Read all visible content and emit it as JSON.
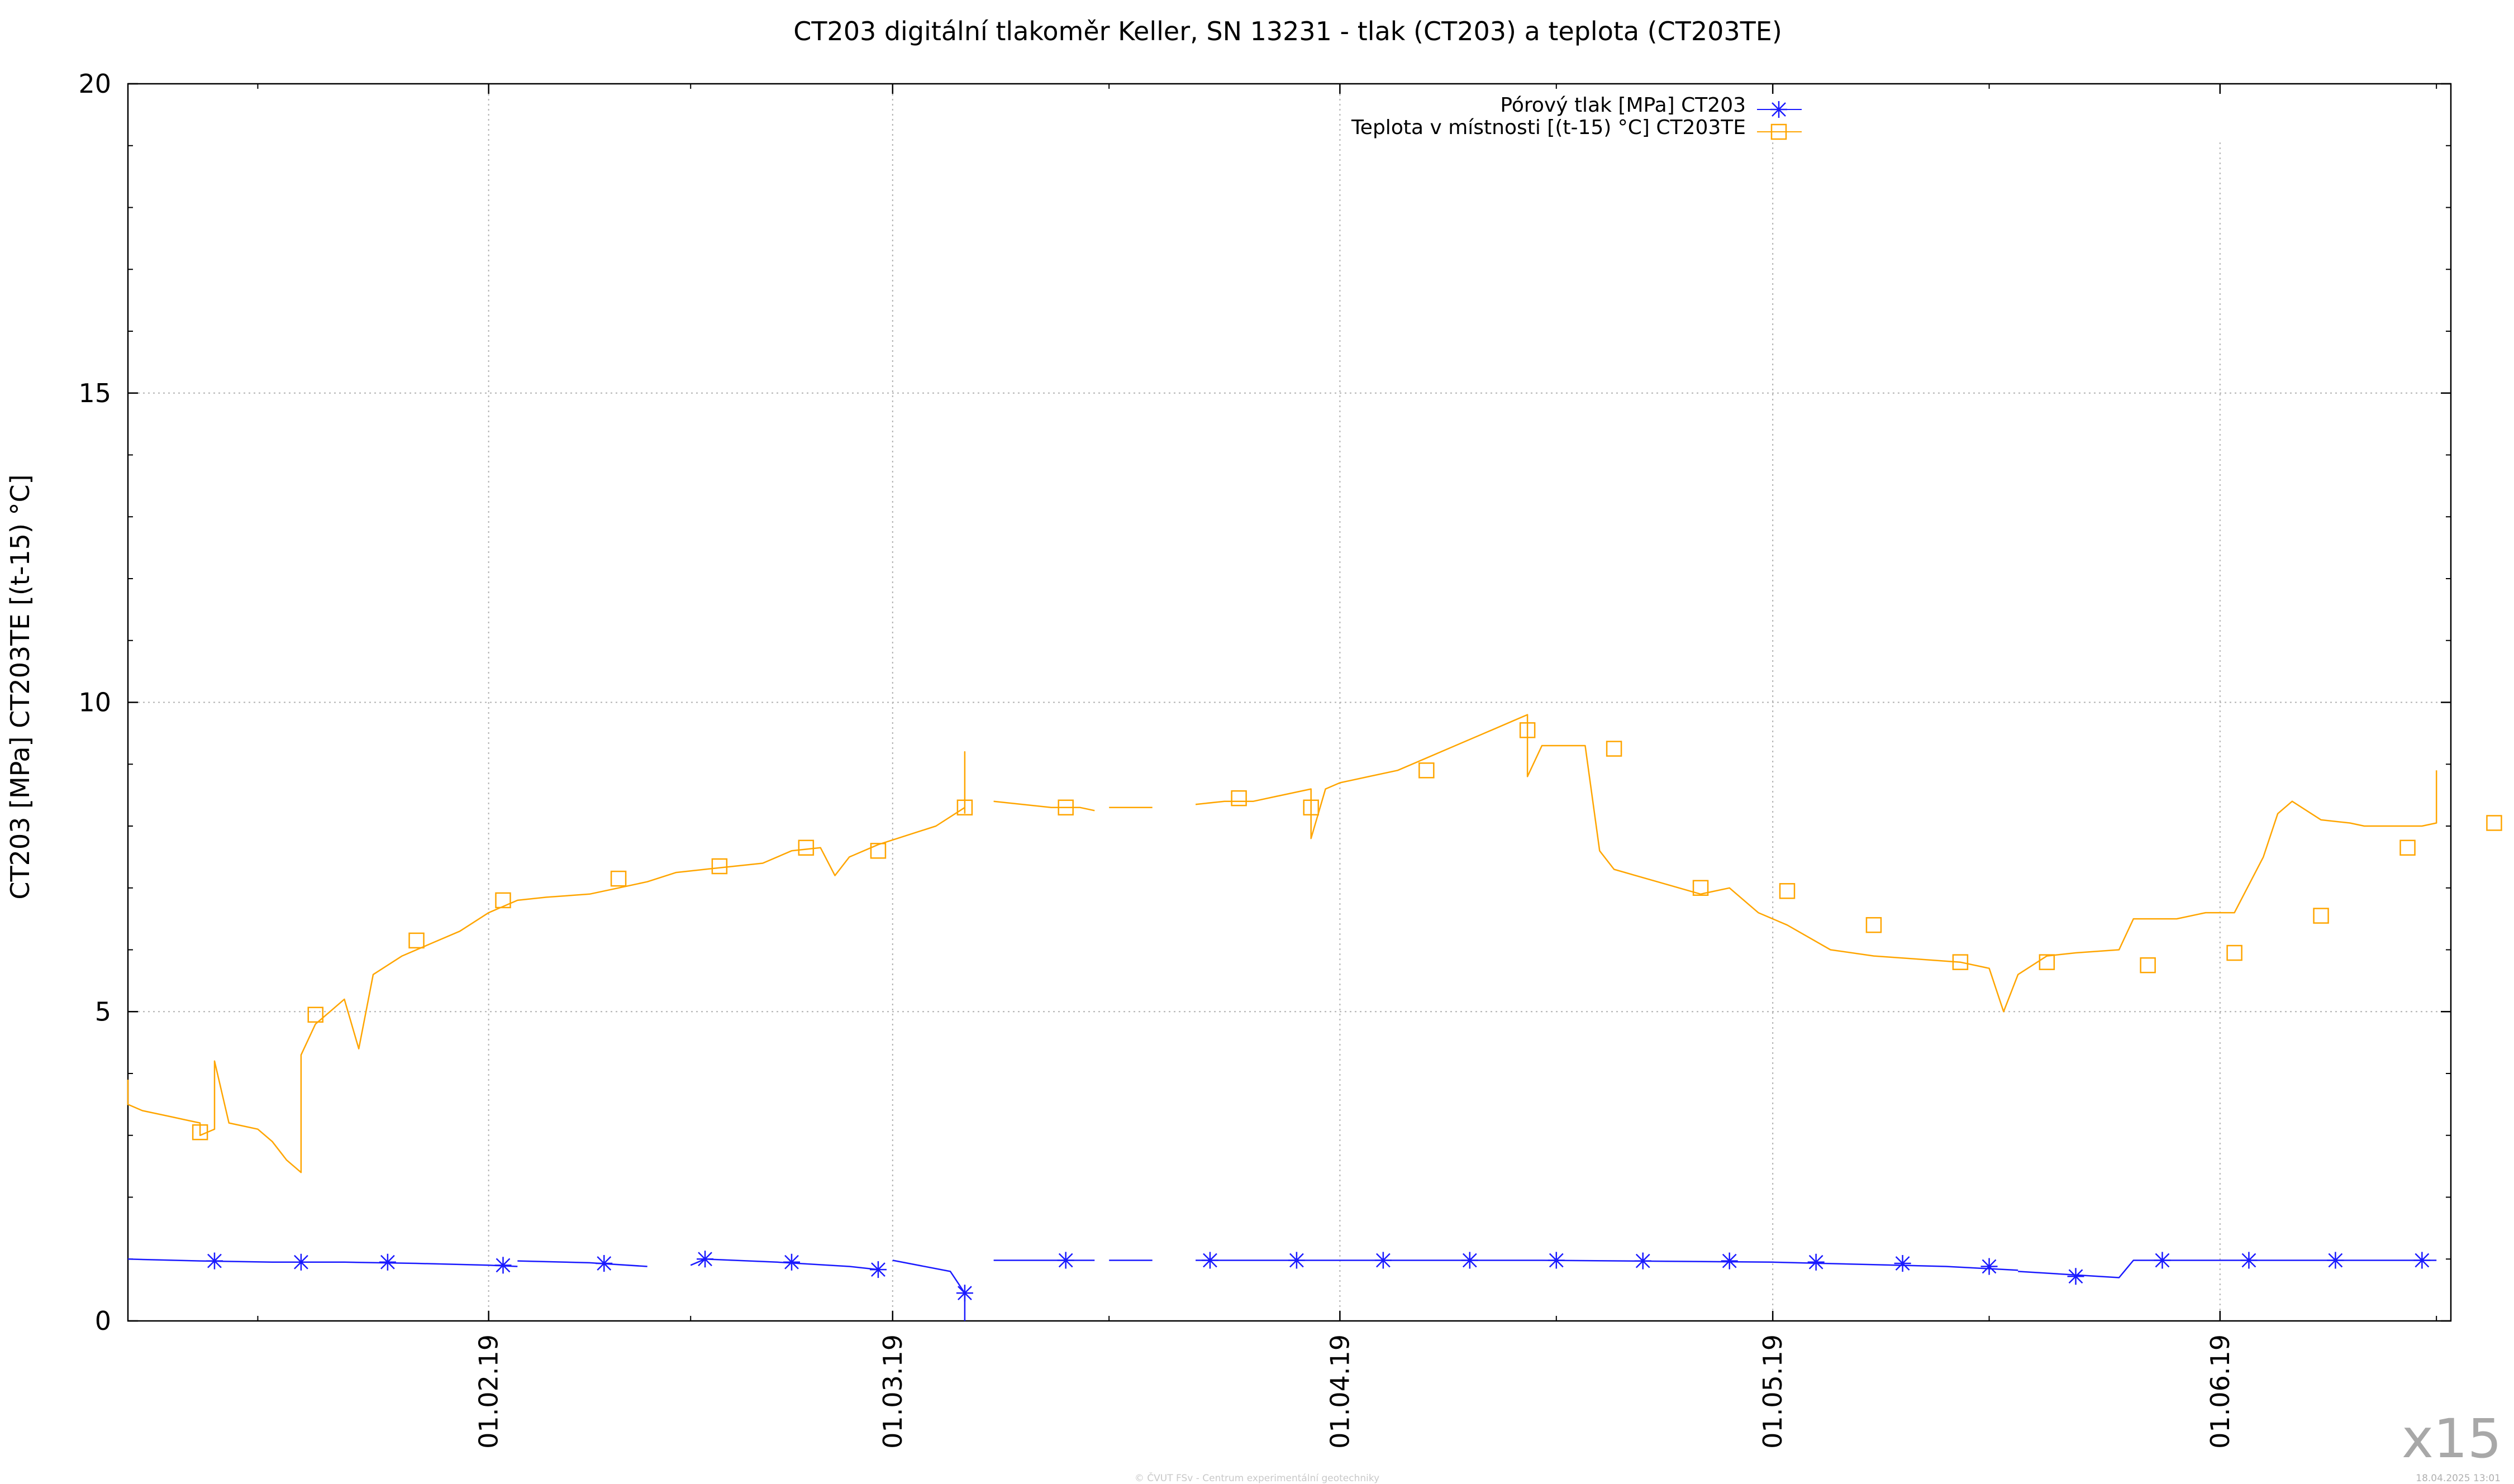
{
  "chart_data": {
    "type": "line",
    "title": "CT203 digitální tlakoměr Keller, SN 13231 - tlak (CT203) a teplota (CT203TE)",
    "ylabel": "CT203 [MPa] CT203TE [(t-15) °C]",
    "ylim": [
      0,
      20
    ],
    "yticks": [
      0,
      5,
      10,
      15,
      20
    ],
    "xlim": [
      "2019-01-07",
      "2019-06-17"
    ],
    "xticks": [
      "2019-02-01",
      "2019-03-01",
      "2019-04-01",
      "2019-05-01",
      "2019-06-01"
    ],
    "xtick_labels": [
      "01.02.19",
      "01.03.19",
      "01.04.19",
      "01.05.19",
      "01.06.19"
    ],
    "grid": true,
    "legend_position": "top-right",
    "series": [
      {
        "name": "Pórový tlak [MPa] CT203",
        "color": "#1a1aff",
        "marker": "asterisk",
        "segments": [
          [
            [
              "2019-01-07",
              1.0
            ],
            [
              "2019-01-12",
              0.97
            ],
            [
              "2019-01-17",
              0.95
            ],
            [
              "2019-01-22",
              0.95
            ],
            [
              "2019-01-27",
              0.93
            ],
            [
              "2019-02-01",
              0.9
            ],
            [
              "2019-02-03",
              0.88
            ]
          ],
          [
            [
              "2019-02-03",
              0.97
            ],
            [
              "2019-02-08",
              0.94
            ],
            [
              "2019-02-12",
              0.88
            ]
          ],
          [
            [
              "2019-02-15",
              0.9
            ],
            [
              "2019-02-16",
              1.0
            ],
            [
              "2019-02-21",
              0.95
            ],
            [
              "2019-02-26",
              0.88
            ],
            [
              "2019-02-28",
              0.83
            ]
          ],
          [
            [
              "2019-03-01",
              0.98
            ],
            [
              "2019-03-05",
              0.8
            ],
            [
              "2019-03-06",
              0.45
            ],
            [
              "2019-03-06",
              0.0
            ]
          ],
          [
            [
              "2019-03-08",
              0.98
            ],
            [
              "2019-03-15",
              0.98
            ]
          ],
          [
            [
              "2019-03-16",
              0.98
            ],
            [
              "2019-03-19",
              0.98
            ]
          ],
          [
            [
              "2019-03-22",
              0.98
            ],
            [
              "2019-04-15",
              0.98
            ],
            [
              "2019-05-01",
              0.95
            ],
            [
              "2019-05-13",
              0.88
            ],
            [
              "2019-05-18",
              0.82
            ]
          ],
          [
            [
              "2019-05-18",
              0.8
            ],
            [
              "2019-05-25",
              0.7
            ],
            [
              "2019-05-26",
              0.98
            ],
            [
              "2019-06-16",
              0.98
            ]
          ]
        ],
        "markers": [
          [
            "2019-01-13",
            0.97
          ],
          [
            "2019-01-19",
            0.95
          ],
          [
            "2019-01-25",
            0.95
          ],
          [
            "2019-02-02",
            0.9
          ],
          [
            "2019-02-09",
            0.93
          ],
          [
            "2019-02-16",
            1.0
          ],
          [
            "2019-02-22",
            0.95
          ],
          [
            "2019-02-28",
            0.83
          ],
          [
            "2019-03-06",
            0.45
          ],
          [
            "2019-03-13",
            0.98
          ],
          [
            "2019-03-23",
            0.98
          ],
          [
            "2019-03-29",
            0.98
          ],
          [
            "2019-04-04",
            0.98
          ],
          [
            "2019-04-10",
            0.98
          ],
          [
            "2019-04-16",
            0.98
          ],
          [
            "2019-04-22",
            0.97
          ],
          [
            "2019-04-28",
            0.97
          ],
          [
            "2019-05-04",
            0.95
          ],
          [
            "2019-05-10",
            0.93
          ],
          [
            "2019-05-16",
            0.88
          ],
          [
            "2019-05-22",
            0.72
          ],
          [
            "2019-05-28",
            0.98
          ],
          [
            "2019-06-03",
            0.98
          ],
          [
            "2019-06-09",
            0.98
          ],
          [
            "2019-06-15",
            0.98
          ]
        ]
      },
      {
        "name": "Teplota v místnosti [(t-15) °C] CT203TE",
        "color": "#ffa500",
        "marker": "square",
        "segments": [
          [
            [
              "2019-01-07",
              3.9
            ],
            [
              "2019-01-07",
              3.5
            ],
            [
              "2019-01-08",
              3.4
            ],
            [
              "2019-01-09",
              3.35
            ],
            [
              "2019-01-10",
              3.3
            ],
            [
              "2019-01-11",
              3.25
            ],
            [
              "2019-01-12",
              3.2
            ],
            [
              "2019-01-12",
              3.0
            ],
            [
              "2019-01-13",
              3.1
            ],
            [
              "2019-01-13",
              4.2
            ],
            [
              "2019-01-14",
              3.2
            ],
            [
              "2019-01-15",
              3.15
            ],
            [
              "2019-01-16",
              3.1
            ],
            [
              "2019-01-17",
              2.9
            ],
            [
              "2019-01-18",
              2.6
            ],
            [
              "2019-01-19",
              2.4
            ],
            [
              "2019-01-19",
              4.3
            ],
            [
              "2019-01-20",
              4.8
            ],
            [
              "2019-01-21",
              5.0
            ],
            [
              "2019-01-22",
              5.2
            ],
            [
              "2019-01-23",
              4.4
            ],
            [
              "2019-01-24",
              5.6
            ],
            [
              "2019-01-26",
              5.9
            ],
            [
              "2019-01-28",
              6.1
            ],
            [
              "2019-01-30",
              6.3
            ],
            [
              "2019-02-01",
              6.6
            ],
            [
              "2019-02-03",
              6.8
            ],
            [
              "2019-02-05",
              6.85
            ],
            [
              "2019-02-08",
              6.9
            ],
            [
              "2019-02-10",
              7.0
            ],
            [
              "2019-02-12",
              7.1
            ],
            [
              "2019-02-14",
              7.25
            ],
            [
              "2019-02-16",
              7.3
            ],
            [
              "2019-02-18",
              7.35
            ],
            [
              "2019-02-20",
              7.4
            ],
            [
              "2019-02-22",
              7.6
            ],
            [
              "2019-02-24",
              7.65
            ],
            [
              "2019-02-25",
              7.2
            ],
            [
              "2019-02-26",
              7.5
            ],
            [
              "2019-02-28",
              7.7
            ],
            [
              "2019-03-02",
              7.85
            ],
            [
              "2019-03-04",
              8.0
            ],
            [
              "2019-03-06",
              8.3
            ],
            [
              "2019-03-06",
              9.2
            ],
            [
              "2019-03-06",
              8.2
            ]
          ],
          [
            [
              "2019-03-08",
              8.4
            ],
            [
              "2019-03-10",
              8.35
            ],
            [
              "2019-03-12",
              8.3
            ],
            [
              "2019-03-14",
              8.3
            ],
            [
              "2019-03-15",
              8.25
            ]
          ],
          [
            [
              "2019-03-16",
              8.3
            ],
            [
              "2019-03-19",
              8.3
            ]
          ],
          [
            [
              "2019-03-22",
              8.35
            ],
            [
              "2019-03-24",
              8.4
            ],
            [
              "2019-03-26",
              8.4
            ],
            [
              "2019-03-28",
              8.5
            ],
            [
              "2019-03-30",
              8.6
            ],
            [
              "2019-03-30",
              7.8
            ],
            [
              "2019-03-31",
              8.6
            ],
            [
              "2019-04-01",
              8.7
            ],
            [
              "2019-04-03",
              8.8
            ],
            [
              "2019-04-05",
              8.9
            ],
            [
              "2019-04-07",
              9.1
            ],
            [
              "2019-04-09",
              9.3
            ],
            [
              "2019-04-11",
              9.5
            ],
            [
              "2019-04-13",
              9.7
            ],
            [
              "2019-04-14",
              9.8
            ],
            [
              "2019-04-14",
              8.8
            ],
            [
              "2019-04-15",
              9.3
            ],
            [
              "2019-04-18",
              9.3
            ],
            [
              "2019-04-19",
              7.6
            ],
            [
              "2019-04-20",
              7.3
            ],
            [
              "2019-04-23",
              7.1
            ],
            [
              "2019-04-26",
              6.9
            ],
            [
              "2019-04-28",
              7.0
            ],
            [
              "2019-04-30",
              6.6
            ],
            [
              "2019-05-02",
              6.4
            ],
            [
              "2019-05-05",
              6.0
            ],
            [
              "2019-05-08",
              5.9
            ],
            [
              "2019-05-11",
              5.85
            ],
            [
              "2019-05-14",
              5.8
            ],
            [
              "2019-05-16",
              5.7
            ],
            [
              "2019-05-17",
              5.0
            ],
            [
              "2019-05-18",
              5.6
            ],
            [
              "2019-05-20",
              5.9
            ],
            [
              "2019-05-22",
              5.95
            ],
            [
              "2019-05-25",
              6.0
            ],
            [
              "2019-05-26",
              6.5
            ],
            [
              "2019-05-29",
              6.5
            ],
            [
              "2019-05-31",
              6.6
            ],
            [
              "2019-06-02",
              6.6
            ],
            [
              "2019-06-04",
              7.5
            ],
            [
              "2019-06-05",
              8.2
            ],
            [
              "2019-06-06",
              8.4
            ],
            [
              "2019-06-08",
              8.1
            ],
            [
              "2019-06-10",
              8.05
            ],
            [
              "2019-06-11",
              8.0
            ],
            [
              "2019-06-12",
              8.0
            ],
            [
              "2019-06-15",
              8.0
            ],
            [
              "2019-06-16",
              8.05
            ],
            [
              "2019-06-16",
              8.9
            ]
          ]
        ],
        "markers": [
          [
            "2019-01-12",
            3.05
          ],
          [
            "2019-01-20",
            4.95
          ],
          [
            "2019-01-27",
            6.15
          ],
          [
            "2019-02-02",
            6.8
          ],
          [
            "2019-02-10",
            7.15
          ],
          [
            "2019-02-17",
            7.35
          ],
          [
            "2019-02-23",
            7.65
          ],
          [
            "2019-02-28",
            7.6
          ],
          [
            "2019-03-06",
            8.3
          ],
          [
            "2019-03-13",
            8.3
          ],
          [
            "2019-03-25",
            8.45
          ],
          [
            "2019-03-30",
            8.3
          ],
          [
            "2019-04-07",
            8.9
          ],
          [
            "2019-04-14",
            9.55
          ],
          [
            "2019-04-20",
            9.25
          ],
          [
            "2019-04-26",
            7.0
          ],
          [
            "2019-05-02",
            6.95
          ],
          [
            "2019-05-08",
            6.4
          ],
          [
            "2019-05-14",
            5.8
          ],
          [
            "2019-05-20",
            5.8
          ],
          [
            "2019-05-27",
            5.75
          ],
          [
            "2019-06-02",
            5.95
          ],
          [
            "2019-06-08",
            6.55
          ],
          [
            "2019-06-14",
            7.65
          ],
          [
            "2019-06-20",
            8.05
          ]
        ]
      }
    ]
  },
  "footer": {
    "credit": "© ČVUT FSv - Centrum experimentální geotechniky",
    "timestamp": "18.04.2025 13:01",
    "zoom": "x15"
  }
}
